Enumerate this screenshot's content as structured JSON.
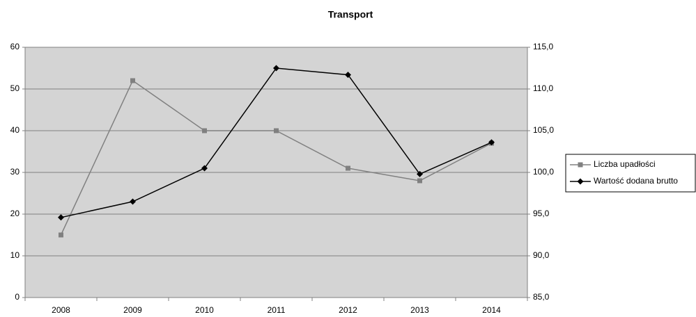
{
  "chart_data": {
    "type": "line",
    "title": "Transport",
    "categories": [
      "2008",
      "2009",
      "2010",
      "2011",
      "2012",
      "2013",
      "2014"
    ],
    "series": [
      {
        "name": "Liczba upadłości",
        "color": "#808080",
        "marker": "square",
        "values": [
          15,
          52,
          40,
          40,
          31,
          28,
          37
        ]
      },
      {
        "name": "Wartość dodana brutto",
        "color": "#000000",
        "marker": "diamond",
        "axis": "y2",
        "values": [
          94.6,
          96.5,
          100.5,
          112.5,
          111.7,
          99.8,
          103.6
        ]
      }
    ],
    "ylim": [
      0,
      60
    ],
    "yticks": [
      0,
      10,
      20,
      30,
      40,
      50,
      60
    ],
    "y2lim": [
      85,
      115
    ],
    "y2ticks": [
      {
        "value": 85,
        "label": "85,0"
      },
      {
        "value": 90,
        "label": "90,0"
      },
      {
        "value": 95,
        "label": "95,0"
      },
      {
        "value": 100,
        "label": "100,0"
      },
      {
        "value": 105,
        "label": "105,0"
      },
      {
        "value": 110,
        "label": "110,0"
      },
      {
        "value": 115,
        "label": "115,0"
      }
    ],
    "grid": true,
    "legend": "right"
  }
}
